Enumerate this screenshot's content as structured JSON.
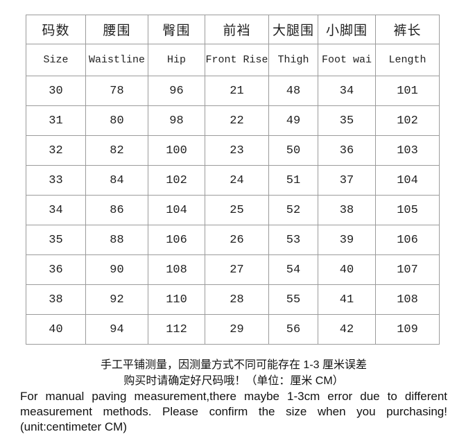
{
  "chart_data": {
    "type": "table",
    "columns_zh": [
      "码数",
      "腰围",
      "臀围",
      "前裆",
      "大腿围",
      "小脚围",
      "裤长"
    ],
    "columns_en": [
      "Size",
      "Waistline",
      "Hip",
      "Front Rise",
      "Thigh",
      "Foot wai",
      "Length"
    ],
    "rows": [
      [
        "30",
        "78",
        "96",
        "21",
        "48",
        "34",
        "101"
      ],
      [
        "31",
        "80",
        "98",
        "22",
        "49",
        "35",
        "102"
      ],
      [
        "32",
        "82",
        "100",
        "23",
        "50",
        "36",
        "103"
      ],
      [
        "33",
        "84",
        "102",
        "24",
        "51",
        "37",
        "104"
      ],
      [
        "34",
        "86",
        "104",
        "25",
        "52",
        "38",
        "105"
      ],
      [
        "35",
        "88",
        "106",
        "26",
        "53",
        "39",
        "106"
      ],
      [
        "36",
        "90",
        "108",
        "27",
        "54",
        "40",
        "107"
      ],
      [
        "38",
        "92",
        "110",
        "28",
        "55",
        "41",
        "108"
      ],
      [
        "40",
        "94",
        "112",
        "29",
        "56",
        "42",
        "109"
      ]
    ]
  },
  "notes": {
    "zh_line1": "手工平铺测量，因测量方式不同可能存在 1-3 厘米误差",
    "zh_line2": "购买时请确定好尺码哦！（单位：厘米 CM）",
    "en_line1": "For manual paving measurement,there maybe 1-3cm error due to different",
    "en_line2": "measurement methods. Please confirm the size when you purchasing!",
    "en_line3": "(unit:centimeter CM)"
  },
  "colors": {
    "border": "#9b9b9b",
    "text": "#1f1f1f",
    "note_text": "#111111",
    "background": "#ffffff"
  }
}
